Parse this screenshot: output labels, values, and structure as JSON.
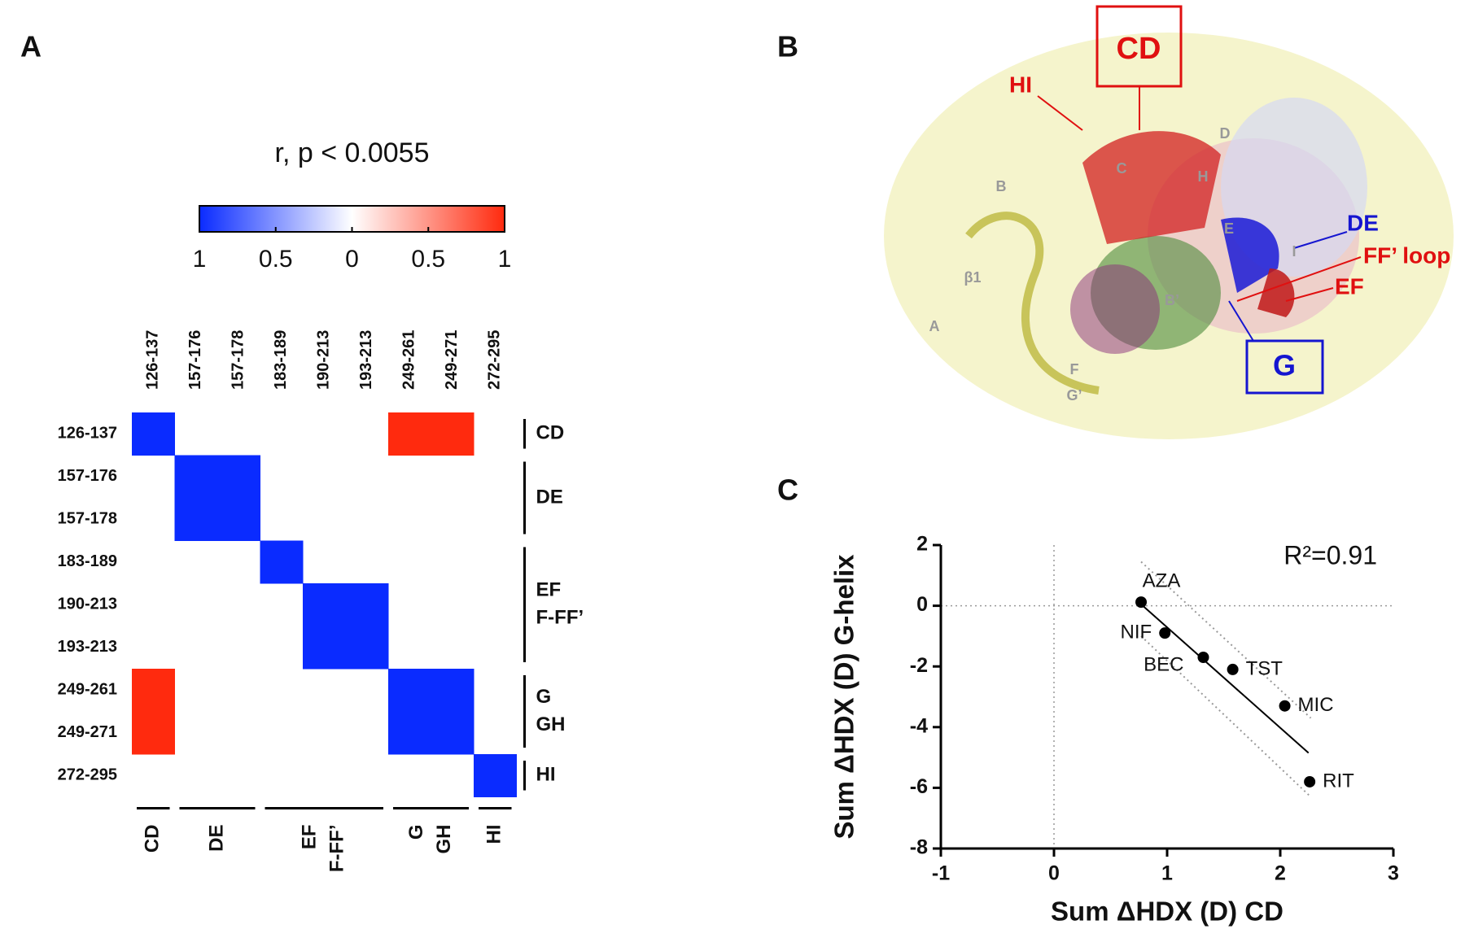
{
  "panels": [
    "A",
    "B",
    "C"
  ],
  "chart_data": [
    {
      "type": "heatmap",
      "title": "r, p < 0.0055",
      "rows": [
        "126-137",
        "157-176",
        "157-178",
        "183-189",
        "190-213",
        "193-213",
        "249-261",
        "249-271",
        "272-295"
      ],
      "columns": [
        "126-137",
        "157-176",
        "157-178",
        "183-189",
        "190-213",
        "193-213",
        "249-261",
        "249-271",
        "272-295"
      ],
      "values": [
        [
          -1,
          null,
          null,
          null,
          null,
          null,
          1,
          1,
          null
        ],
        [
          null,
          -1,
          -1,
          null,
          null,
          null,
          null,
          null,
          null
        ],
        [
          null,
          -1,
          -1,
          null,
          null,
          null,
          null,
          null,
          null
        ],
        [
          null,
          null,
          null,
          -1,
          null,
          null,
          null,
          null,
          null
        ],
        [
          null,
          null,
          null,
          null,
          -1,
          -1,
          null,
          null,
          null
        ],
        [
          null,
          null,
          null,
          null,
          -1,
          -1,
          null,
          null,
          null
        ],
        [
          1,
          null,
          null,
          null,
          null,
          null,
          -1,
          -1,
          null
        ],
        [
          1,
          null,
          null,
          null,
          null,
          null,
          -1,
          -1,
          null
        ],
        [
          null,
          null,
          null,
          null,
          null,
          null,
          null,
          null,
          -1
        ]
      ],
      "colors": [
        "#0a2bff",
        "#ffffff",
        "#ff2a0e"
      ],
      "clim": [
        -1,
        1
      ],
      "cticks": [
        {
          "value": -1,
          "label": "1"
        },
        {
          "value": -0.5,
          "label": "0.5"
        },
        0,
        {
          "value": 0.5,
          "label": "0.5"
        },
        1
      ],
      "row_groups": [
        [
          "CD"
        ],
        [
          "DE"
        ],
        [
          "EF",
          "F-FF’"
        ],
        [
          "G",
          "GH"
        ],
        [
          "HI"
        ]
      ],
      "column_groups": [
        [
          "CD"
        ],
        [
          "DE"
        ],
        [
          "EF",
          "F-FF’"
        ],
        [
          "G",
          "GH"
        ],
        [
          "HI"
        ]
      ]
    },
    {
      "type": "scatter",
      "xlabel": "Sum ΔHDX (D) CD",
      "ylabel": "Sum ΔHDX (D) G-helix",
      "annotation": "R²=0.91",
      "x": [
        0.77,
        0.98,
        1.32,
        1.58,
        2.04,
        2.26
      ],
      "y": [
        0.12,
        -0.9,
        -1.7,
        -2.1,
        -3.3,
        -5.8
      ],
      "labels": [
        "AZA",
        "NIF",
        "BEC",
        "TST",
        "MIC",
        "RIT"
      ],
      "fit": {
        "x": [
          0.77,
          2.25
        ],
        "y": [
          0.05,
          -4.85
        ]
      },
      "bands": [
        {
          "x": [
            0.77,
            2.27
          ],
          "y": [
            1.45,
            -3.7
          ]
        },
        {
          "x": [
            0.77,
            2.27
          ],
          "y": [
            -1.0,
            -6.3
          ]
        }
      ],
      "xlim": [
        -1,
        3
      ],
      "ylim": [
        -8,
        2
      ],
      "xticks": [
        -1,
        0,
        1,
        2,
        3
      ],
      "yticks": [
        -8,
        -6,
        -4,
        -2,
        0,
        2
      ]
    }
  ],
  "structure": {
    "boxes": [
      "CD",
      "G"
    ],
    "labels": [
      "HI",
      "DE",
      "FF’ loop",
      "EF"
    ],
    "helices": [
      "D",
      "C",
      "H",
      "B",
      "E",
      "I",
      "β1",
      "B’",
      "A",
      "F",
      "G’"
    ]
  }
}
